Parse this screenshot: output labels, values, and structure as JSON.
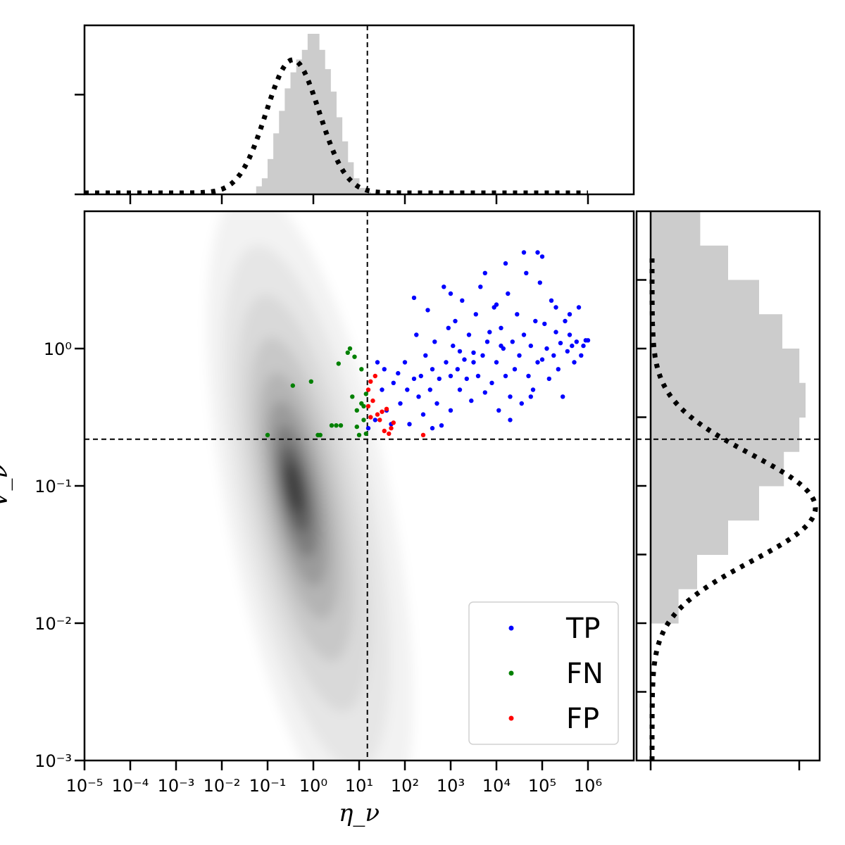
{
  "chart_data": {
    "type": "scatter",
    "subtype": "joint plot (scatter + density + marginal histograms)",
    "xlabel": "η_ν",
    "ylabel": "V_ν",
    "xscale": "log",
    "yscale": "log",
    "xlim_exp": [
      -5,
      7
    ],
    "ylim_exp": [
      -3,
      1
    ],
    "x_tick_exponents": [
      -5,
      -4,
      -3,
      -2,
      -1,
      0,
      1,
      2,
      3,
      4,
      5,
      6
    ],
    "y_tick_exponents": [
      -3,
      -2,
      -1,
      0
    ],
    "x_tick_labels": [
      "10⁻⁵",
      "10⁻⁴",
      "10⁻³",
      "10⁻²",
      "10⁻¹",
      "10⁰",
      "10¹",
      "10²",
      "10³",
      "10⁴",
      "10⁵",
      "10⁶"
    ],
    "y_tick_labels": [
      "10⁻³",
      "10⁻²",
      "10⁻¹",
      "10⁰"
    ],
    "thresholds": {
      "eta_exp": 1.18,
      "v_exp": -0.66
    },
    "legend": {
      "placement": "lower-right",
      "entries": [
        "TP",
        "FN",
        "FP"
      ]
    },
    "colors": {
      "TP": "#0000ff",
      "FN": "#008000",
      "FP": "#ff0000",
      "histogram": "#cccccc",
      "density": "#000000"
    },
    "density": {
      "center_exp": [
        -0.45,
        -1.0
      ],
      "spread_exp": [
        0.45,
        0.22
      ],
      "correlation": 0.72
    },
    "series": [
      {
        "name": "TP",
        "points_log": [
          [
            1.2,
            -0.58
          ],
          [
            1.35,
            -0.52
          ],
          [
            1.5,
            -0.3
          ],
          [
            1.6,
            -0.45
          ],
          [
            1.7,
            -0.55
          ],
          [
            1.75,
            -0.25
          ],
          [
            1.85,
            -0.18
          ],
          [
            1.9,
            -0.4
          ],
          [
            2.0,
            -0.1
          ],
          [
            2.05,
            -0.3
          ],
          [
            2.1,
            -0.55
          ],
          [
            2.2,
            -0.22
          ],
          [
            2.25,
            0.1
          ],
          [
            2.3,
            -0.35
          ],
          [
            2.35,
            -0.2
          ],
          [
            2.4,
            -0.48
          ],
          [
            2.45,
            -0.05
          ],
          [
            2.5,
            0.28
          ],
          [
            2.55,
            -0.3
          ],
          [
            2.6,
            -0.15
          ],
          [
            2.65,
            0.05
          ],
          [
            2.7,
            -0.4
          ],
          [
            2.75,
            -0.22
          ],
          [
            2.8,
            -0.56
          ],
          [
            2.85,
            0.45
          ],
          [
            2.9,
            -0.1
          ],
          [
            2.95,
            0.15
          ],
          [
            3.0,
            -0.2
          ],
          [
            3.0,
            -0.45
          ],
          [
            3.05,
            0.02
          ],
          [
            3.1,
            0.2
          ],
          [
            3.15,
            -0.15
          ],
          [
            3.2,
            -0.3
          ],
          [
            3.25,
            0.35
          ],
          [
            3.3,
            -0.08
          ],
          [
            3.35,
            -0.22
          ],
          [
            3.4,
            0.1
          ],
          [
            3.45,
            -0.38
          ],
          [
            3.5,
            -0.1
          ],
          [
            3.55,
            0.25
          ],
          [
            3.6,
            -0.2
          ],
          [
            3.65,
            0.45
          ],
          [
            3.7,
            -0.05
          ],
          [
            3.75,
            -0.32
          ],
          [
            3.8,
            0.05
          ],
          [
            3.85,
            0.12
          ],
          [
            3.9,
            -0.25
          ],
          [
            3.95,
            0.3
          ],
          [
            4.0,
            -0.1
          ],
          [
            4.05,
            -0.45
          ],
          [
            4.1,
            0.15
          ],
          [
            4.15,
            0.0
          ],
          [
            4.2,
            -0.2
          ],
          [
            4.25,
            0.4
          ],
          [
            4.3,
            -0.35
          ],
          [
            4.35,
            0.05
          ],
          [
            4.4,
            -0.15
          ],
          [
            4.45,
            0.25
          ],
          [
            4.5,
            -0.05
          ],
          [
            4.55,
            -0.4
          ],
          [
            4.6,
            0.1
          ],
          [
            4.65,
            0.55
          ],
          [
            4.7,
            -0.2
          ],
          [
            4.75,
            0.02
          ],
          [
            4.8,
            -0.3
          ],
          [
            4.85,
            0.2
          ],
          [
            4.9,
            -0.1
          ],
          [
            4.95,
            0.48
          ],
          [
            5.0,
            -0.08
          ],
          [
            5.05,
            0.18
          ],
          [
            5.1,
            0.0
          ],
          [
            5.15,
            -0.22
          ],
          [
            5.2,
            0.35
          ],
          [
            5.25,
            -0.05
          ],
          [
            5.3,
            0.12
          ],
          [
            5.35,
            -0.15
          ],
          [
            5.4,
            0.04
          ],
          [
            5.45,
            -0.35
          ],
          [
            5.5,
            0.2
          ],
          [
            5.55,
            -0.02
          ],
          [
            5.6,
            0.1
          ],
          [
            5.65,
            0.02
          ],
          [
            5.7,
            -0.1
          ],
          [
            5.75,
            0.05
          ],
          [
            5.8,
            0.3
          ],
          [
            5.85,
            -0.05
          ],
          [
            5.9,
            0.02
          ],
          [
            5.95,
            0.06
          ],
          [
            6.0,
            0.06
          ],
          [
            3.5,
            -0.03
          ],
          [
            4.0,
            0.32
          ],
          [
            4.6,
            0.7
          ],
          [
            4.9,
            0.7
          ],
          [
            5.0,
            0.67
          ],
          [
            4.2,
            0.62
          ],
          [
            3.75,
            0.55
          ],
          [
            3.0,
            0.4
          ],
          [
            2.2,
            0.37
          ],
          [
            5.3,
            0.3
          ],
          [
            5.6,
            0.25
          ],
          [
            4.1,
            0.02
          ],
          [
            3.2,
            -0.02
          ],
          [
            4.75,
            -0.35
          ],
          [
            4.3,
            -0.52
          ],
          [
            2.6,
            -0.58
          ],
          [
            1.4,
            -0.1
          ],
          [
            1.55,
            -0.15
          ]
        ]
      },
      {
        "name": "FN",
        "points_log": [
          [
            -1.0,
            -0.63
          ],
          [
            -0.45,
            -0.27
          ],
          [
            -0.05,
            -0.24
          ],
          [
            0.1,
            -0.63
          ],
          [
            0.15,
            -0.63
          ],
          [
            0.4,
            -0.56
          ],
          [
            0.5,
            -0.56
          ],
          [
            0.55,
            -0.11
          ],
          [
            0.6,
            -0.56
          ],
          [
            0.75,
            -0.03
          ],
          [
            0.8,
            0.0
          ],
          [
            0.85,
            -0.35
          ],
          [
            0.9,
            -0.06
          ],
          [
            0.95,
            -0.57
          ],
          [
            0.95,
            -0.45
          ],
          [
            1.0,
            -0.63
          ],
          [
            1.05,
            -0.15
          ],
          [
            1.05,
            -0.4
          ],
          [
            1.1,
            -0.42
          ],
          [
            1.15,
            -0.33
          ],
          [
            1.1,
            -0.52
          ],
          [
            1.15,
            -0.62
          ]
        ]
      },
      {
        "name": "FP",
        "points_log": [
          [
            1.2,
            -0.3
          ],
          [
            1.2,
            -0.42
          ],
          [
            1.25,
            -0.5
          ],
          [
            1.3,
            -0.38
          ],
          [
            1.35,
            -0.2
          ],
          [
            1.4,
            -0.48
          ],
          [
            1.45,
            -0.52
          ],
          [
            1.5,
            -0.46
          ],
          [
            1.55,
            -0.6
          ],
          [
            1.6,
            -0.44
          ],
          [
            1.65,
            -0.62
          ],
          [
            1.7,
            -0.58
          ],
          [
            1.75,
            -0.54
          ],
          [
            2.4,
            -0.63
          ],
          [
            1.25,
            -0.24
          ]
        ]
      }
    ],
    "top_marginal": {
      "bin_width_exp": 0.125,
      "start_exp": -1.25,
      "heights": [
        0.05,
        0.1,
        0.22,
        0.38,
        0.52,
        0.66,
        0.76,
        0.84,
        0.9,
        1.0,
        1.0,
        0.9,
        0.78,
        0.64,
        0.48,
        0.33,
        0.2,
        0.1,
        0.04,
        0.015
      ],
      "kde_center_exp": -0.45,
      "kde_sigma_exp": 0.58,
      "kde_peak": 0.83
    },
    "right_marginal": {
      "bin_width_exp": 0.25,
      "start_exp": -2.0,
      "heights": [
        0.18,
        0.3,
        0.5,
        0.7,
        0.86,
        0.96,
        1.0,
        0.96,
        0.85,
        0.7,
        0.5,
        0.32,
        0.16,
        0.08,
        0.03,
        0.01
      ],
      "kde_center_exp": -1.16,
      "kde_sigma_exp": 0.39,
      "kde_peak": 1.0
    }
  }
}
